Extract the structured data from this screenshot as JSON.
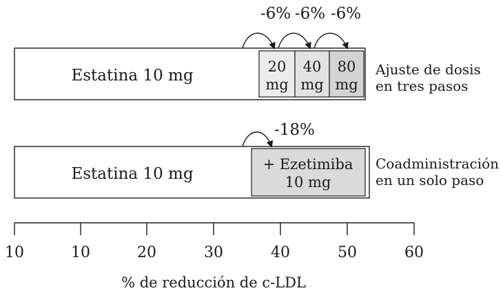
{
  "rows": [
    {
      "base_label": "Estatina 10 mg",
      "side_label_lines": [
        "Ajuste de dosis",
        "en tres pasos"
      ],
      "boxes": [
        {
          "lines": [
            "20",
            "mg"
          ],
          "color": "#ececec"
        },
        {
          "lines": [
            "40",
            "mg"
          ],
          "color": "#e2e2e2"
        },
        {
          "lines": [
            "80",
            "mg"
          ],
          "color": "#d3d3d3"
        }
      ],
      "steps": [
        "-6%",
        "-6%",
        "-6%"
      ]
    },
    {
      "base_label": "Estatina 10 mg",
      "side_label_lines": [
        "Coadministración",
        "en un solo paso"
      ],
      "boxes": [
        {
          "lines": [
            "+ Ezetimiba",
            "10 mg"
          ],
          "color": "#dadada"
        }
      ],
      "steps": [
        "-18%"
      ]
    }
  ],
  "axis": {
    "tick_labels": [
      "10",
      "10",
      "20",
      "30",
      "40",
      "50",
      "60"
    ],
    "title": "% de reducción de c-LDL"
  }
}
